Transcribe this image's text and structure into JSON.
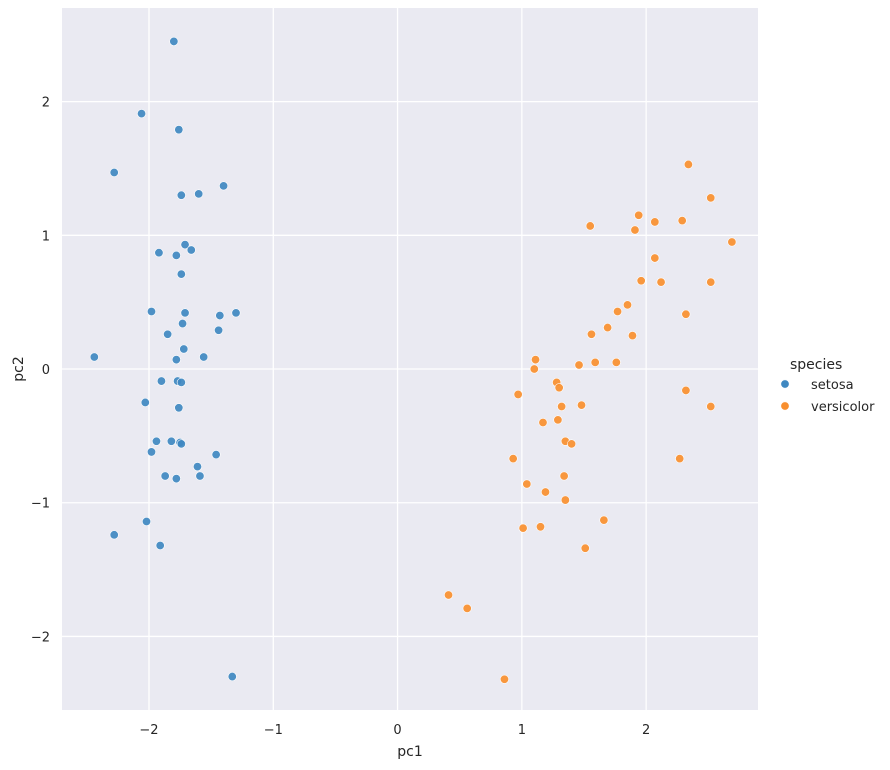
{
  "chart_data": {
    "type": "scatter",
    "xlabel": "pc1",
    "ylabel": "pc2",
    "xlim": [
      -2.7,
      2.9
    ],
    "ylim": [
      -2.55,
      2.7
    ],
    "xticks": [
      -2,
      -1,
      0,
      1,
      2
    ],
    "yticks": [
      -2,
      -1,
      0,
      1,
      2
    ],
    "grid": true,
    "legend": {
      "title": "species",
      "placement": "right"
    },
    "series": [
      {
        "name": "setosa",
        "color": "#3f88c1",
        "points": [
          [
            -1.8,
            2.45
          ],
          [
            -2.06,
            1.91
          ],
          [
            -1.76,
            1.79
          ],
          [
            -2.28,
            1.47
          ],
          [
            -1.74,
            1.3
          ],
          [
            -1.6,
            1.31
          ],
          [
            -1.4,
            1.37
          ],
          [
            -1.71,
            0.93
          ],
          [
            -1.92,
            0.87
          ],
          [
            -1.78,
            0.85
          ],
          [
            -1.66,
            0.89
          ],
          [
            -1.74,
            0.71
          ],
          [
            -1.98,
            0.43
          ],
          [
            -1.71,
            0.42
          ],
          [
            -1.43,
            0.4
          ],
          [
            -1.3,
            0.42
          ],
          [
            -1.73,
            0.34
          ],
          [
            -1.85,
            0.26
          ],
          [
            -1.44,
            0.29
          ],
          [
            -1.72,
            0.15
          ],
          [
            -2.44,
            0.09
          ],
          [
            -1.56,
            0.09
          ],
          [
            -1.78,
            0.07
          ],
          [
            -1.9,
            -0.09
          ],
          [
            -1.77,
            -0.09
          ],
          [
            -1.74,
            -0.1
          ],
          [
            -2.03,
            -0.25
          ],
          [
            -1.76,
            -0.29
          ],
          [
            -1.94,
            -0.54
          ],
          [
            -1.82,
            -0.54
          ],
          [
            -1.75,
            -0.55
          ],
          [
            -1.74,
            -0.56
          ],
          [
            -1.46,
            -0.64
          ],
          [
            -1.98,
            -0.62
          ],
          [
            -1.61,
            -0.73
          ],
          [
            -1.87,
            -0.8
          ],
          [
            -1.59,
            -0.8
          ],
          [
            -1.78,
            -0.82
          ],
          [
            -2.02,
            -1.14
          ],
          [
            -2.28,
            -1.24
          ],
          [
            -1.91,
            -1.32
          ],
          [
            -1.33,
            -2.3
          ]
        ]
      },
      {
        "name": "versicolor",
        "color": "#f88f2f",
        "points": [
          [
            2.34,
            1.53
          ],
          [
            2.52,
            1.28
          ],
          [
            1.94,
            1.15
          ],
          [
            2.07,
            1.1
          ],
          [
            2.29,
            1.11
          ],
          [
            1.55,
            1.07
          ],
          [
            1.91,
            1.04
          ],
          [
            2.69,
            0.95
          ],
          [
            2.07,
            0.83
          ],
          [
            1.96,
            0.66
          ],
          [
            2.12,
            0.65
          ],
          [
            2.52,
            0.65
          ],
          [
            1.85,
            0.48
          ],
          [
            1.77,
            0.43
          ],
          [
            2.32,
            0.41
          ],
          [
            1.69,
            0.31
          ],
          [
            1.56,
            0.26
          ],
          [
            1.89,
            0.25
          ],
          [
            1.11,
            0.07
          ],
          [
            1.59,
            0.05
          ],
          [
            1.76,
            0.05
          ],
          [
            1.46,
            0.03
          ],
          [
            1.1,
            0.0
          ],
          [
            1.28,
            -0.1
          ],
          [
            1.3,
            -0.14
          ],
          [
            0.97,
            -0.19
          ],
          [
            2.32,
            -0.16
          ],
          [
            1.48,
            -0.27
          ],
          [
            1.32,
            -0.28
          ],
          [
            2.52,
            -0.28
          ],
          [
            1.17,
            -0.4
          ],
          [
            1.29,
            -0.38
          ],
          [
            1.35,
            -0.54
          ],
          [
            1.4,
            -0.56
          ],
          [
            0.93,
            -0.67
          ],
          [
            2.27,
            -0.67
          ],
          [
            1.34,
            -0.8
          ],
          [
            1.04,
            -0.86
          ],
          [
            1.19,
            -0.92
          ],
          [
            1.35,
            -0.98
          ],
          [
            1.66,
            -1.13
          ],
          [
            1.01,
            -1.19
          ],
          [
            1.15,
            -1.18
          ],
          [
            1.51,
            -1.34
          ],
          [
            0.41,
            -1.69
          ],
          [
            0.56,
            -1.79
          ],
          [
            0.86,
            -2.32
          ]
        ]
      }
    ]
  }
}
